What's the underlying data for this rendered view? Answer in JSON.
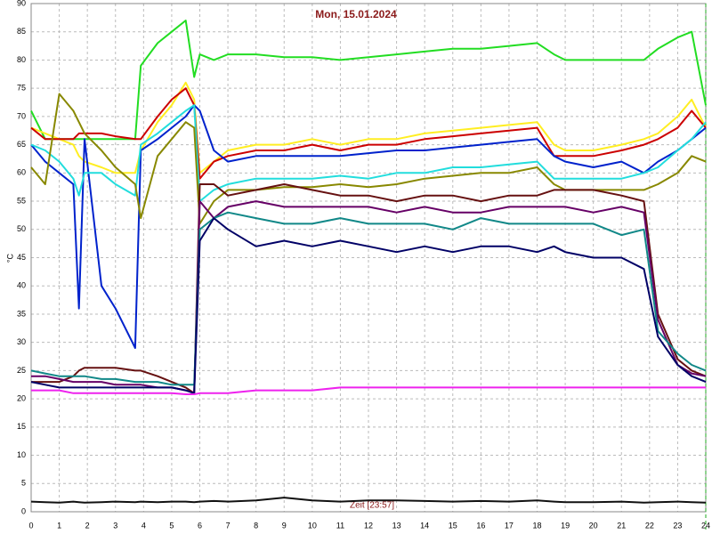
{
  "chart_data": {
    "type": "line",
    "title": "Mon, 15.01.2024",
    "y_label": "°C",
    "x_label": "Zeit [23:57]",
    "xlim": [
      0,
      24
    ],
    "ylim": [
      0,
      90
    ],
    "xticks": [
      0,
      1,
      2,
      3,
      4,
      5,
      6,
      7,
      8,
      9,
      10,
      11,
      12,
      13,
      14,
      15,
      16,
      17,
      18,
      19,
      20,
      21,
      22,
      23,
      24
    ],
    "yticks": [
      0,
      5,
      10,
      15,
      20,
      25,
      30,
      35,
      40,
      45,
      50,
      55,
      60,
      65,
      70,
      75,
      80,
      85,
      90
    ],
    "grid": true,
    "x": [
      0,
      0.5,
      1,
      1.5,
      1.7,
      1.9,
      2.5,
      3,
      3.7,
      3.9,
      4.5,
      5,
      5.5,
      5.8,
      6,
      6.5,
      7,
      8,
      9,
      10,
      11,
      12,
      13,
      14,
      15,
      16,
      17,
      18,
      18.6,
      19,
      20,
      21,
      21.8,
      22.3,
      23,
      23.5,
      24
    ],
    "series": [
      {
        "color": "#22dd22",
        "values": [
          71,
          66,
          66,
          66,
          66,
          66,
          66,
          66,
          66,
          79,
          83,
          85,
          87,
          77,
          81,
          80,
          81,
          81,
          80.5,
          80.5,
          80,
          80.5,
          81,
          81.5,
          82,
          82,
          82.5,
          83,
          81,
          80,
          80,
          80,
          80,
          82,
          84,
          85,
          72
        ]
      },
      {
        "color": "#ffee22",
        "values": [
          68,
          67,
          66,
          65,
          63,
          62,
          61,
          60,
          60,
          64,
          69,
          72,
          76,
          73,
          60,
          62,
          64,
          65,
          65,
          66,
          65,
          66,
          66,
          67,
          67.5,
          68,
          68.5,
          69,
          65,
          64,
          64,
          65,
          66,
          67,
          70,
          73,
          68
        ]
      },
      {
        "color": "#cc0000",
        "values": [
          68,
          66,
          66,
          66,
          67,
          67,
          67,
          66.5,
          66,
          66,
          70,
          73,
          75,
          72,
          59,
          62,
          63,
          64,
          64,
          65,
          64,
          65,
          65,
          66,
          66.5,
          67,
          67.5,
          68,
          63,
          63,
          63,
          64,
          65,
          66,
          68,
          71,
          68
        ]
      },
      {
        "color": "#0022cc",
        "values": [
          65,
          62,
          60,
          58,
          36,
          66,
          40,
          36,
          29,
          64,
          66,
          68,
          70,
          72,
          71,
          64,
          62,
          63,
          63,
          63,
          63,
          63.5,
          64,
          64,
          64.5,
          65,
          65.5,
          66,
          63,
          62,
          61,
          62,
          60,
          62,
          64,
          66,
          68
        ]
      },
      {
        "color": "#22dddd",
        "values": [
          65,
          64,
          62,
          59,
          56,
          60,
          60,
          58,
          56,
          65,
          67,
          69,
          71,
          72,
          55,
          57,
          58,
          59,
          59,
          59,
          59.5,
          59,
          60,
          60,
          61,
          61,
          61.5,
          62,
          59,
          59,
          59,
          59,
          60,
          61,
          64,
          66,
          69
        ]
      },
      {
        "color": "#888800",
        "values": [
          61,
          58,
          74,
          71,
          69,
          67,
          64,
          61,
          58,
          52,
          63,
          66,
          69,
          68,
          51,
          55,
          57,
          57,
          57.5,
          57.5,
          58,
          57.5,
          58,
          59,
          59.5,
          60,
          60,
          61,
          58,
          57,
          57,
          57,
          57,
          58,
          60,
          63,
          62
        ]
      },
      {
        "color": "#661111",
        "values": [
          23,
          23,
          23,
          24,
          25,
          25.5,
          25.5,
          25.5,
          25,
          25,
          24,
          23,
          22,
          21,
          58,
          58,
          56,
          57,
          58,
          57,
          56,
          56,
          55,
          56,
          56,
          55,
          56,
          56,
          57,
          57,
          57,
          56,
          55,
          35,
          27,
          25,
          24
        ]
      },
      {
        "color": "#660066",
        "values": [
          24,
          24,
          23.5,
          23,
          23,
          23,
          23,
          22.5,
          22.5,
          22.5,
          22,
          22,
          21.5,
          21,
          55,
          52,
          54,
          55,
          54,
          54,
          54,
          54,
          53,
          54,
          53,
          53,
          54,
          54,
          54,
          54,
          53,
          54,
          53,
          34,
          26,
          24.5,
          24
        ]
      },
      {
        "color": "#118888",
        "values": [
          25,
          24.5,
          24,
          24,
          24,
          24,
          23.5,
          23.5,
          23,
          23,
          23,
          22.5,
          22.5,
          22.5,
          50,
          52,
          53,
          52,
          51,
          51,
          52,
          51,
          51,
          51,
          50,
          52,
          51,
          51,
          51,
          51,
          51,
          49,
          50,
          32,
          28,
          26,
          25
        ]
      },
      {
        "color": "#000066",
        "values": [
          23,
          22.5,
          22,
          22,
          22,
          22,
          22,
          22,
          22,
          22,
          22,
          22,
          21.5,
          21,
          48,
          52,
          50,
          47,
          48,
          47,
          48,
          47,
          46,
          47,
          46,
          47,
          47,
          46,
          47,
          46,
          45,
          45,
          43,
          31,
          26,
          24,
          23
        ]
      },
      {
        "color": "#ee22ee",
        "values": [
          21.5,
          21.5,
          21.5,
          21,
          21,
          21,
          21,
          21,
          21,
          21,
          21,
          21,
          20.8,
          20.8,
          21,
          21,
          21,
          21.5,
          21.5,
          21.5,
          22,
          22,
          22,
          22,
          22,
          22,
          22,
          22,
          22,
          22,
          22,
          22,
          22,
          22,
          22,
          22,
          22
        ]
      },
      {
        "color": "#111111",
        "values": [
          1.8,
          1.7,
          1.6,
          1.8,
          1.7,
          1.6,
          1.7,
          1.8,
          1.7,
          1.8,
          1.7,
          1.8,
          1.8,
          1.7,
          1.8,
          1.9,
          1.8,
          2,
          2.5,
          2,
          1.8,
          2,
          2,
          1.9,
          1.8,
          1.9,
          1.8,
          2,
          1.8,
          1.7,
          1.7,
          1.8,
          1.6,
          1.7,
          1.8,
          1.7,
          1.6
        ]
      }
    ]
  }
}
